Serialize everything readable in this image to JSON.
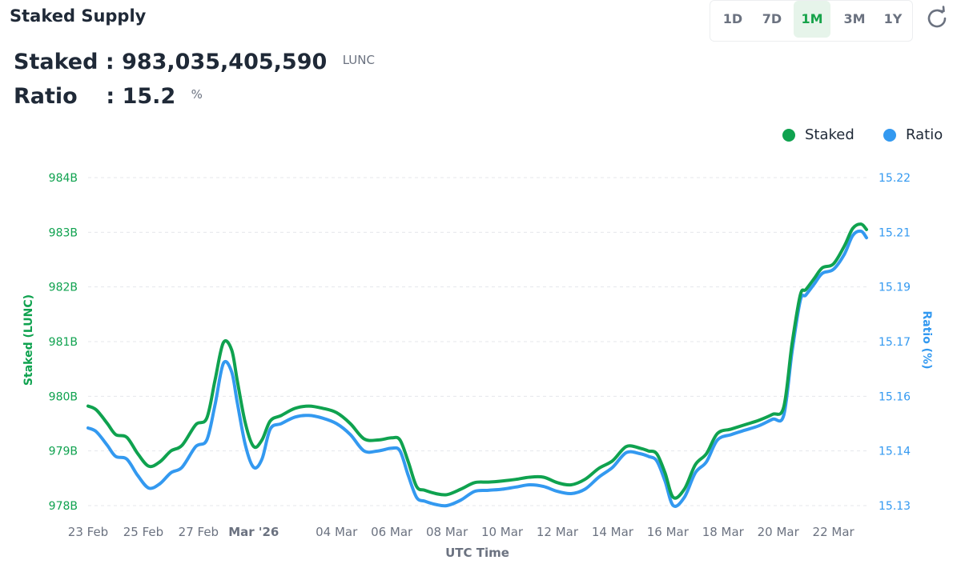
{
  "header": {
    "title": "Staked Supply",
    "ranges": [
      "1D",
      "7D",
      "1M",
      "3M",
      "1Y"
    ],
    "active_range": "1M",
    "refresh_icon": "refresh-icon"
  },
  "stats": {
    "staked_label": "Staked",
    "staked_value": "983,035,405,590",
    "staked_unit": "LUNC",
    "ratio_label": "Ratio",
    "ratio_value": "15.2",
    "ratio_unit": "%"
  },
  "colors": {
    "staked": "#0fa24f",
    "ratio": "#3399f0",
    "grid": "#e5e7eb"
  },
  "chart_data": {
    "type": "line",
    "title": "",
    "xlabel": "UTC Time",
    "ylabel": "Staked (LUNC)",
    "ylabel_right": "Ratio (%)",
    "x_tick_labels": [
      "23 Feb",
      "25 Feb",
      "27 Feb",
      "Mar '26",
      "04 Mar",
      "06 Mar",
      "08 Mar",
      "10 Mar",
      "12 Mar",
      "14 Mar",
      "16 Mar",
      "18 Mar",
      "20 Mar",
      "22 Mar"
    ],
    "x_tick_days": [
      0,
      2,
      4,
      6,
      9,
      11,
      13,
      15,
      17,
      19,
      21,
      23,
      25,
      27
    ],
    "x_range_days": [
      0,
      28.2
    ],
    "y_left_ticks": [
      984,
      983,
      982,
      981,
      980,
      979,
      978
    ],
    "y_left_tick_labels": [
      "984B",
      "983B",
      "982B",
      "981B",
      "980B",
      "979B",
      "978B"
    ],
    "y_left_range": [
      978,
      984
    ],
    "y_right_ticks": [
      15.22,
      15.21,
      15.19,
      15.17,
      15.16,
      15.14,
      15.13
    ],
    "y_right_tick_labels": [
      "15.22",
      "15.21",
      "15.19",
      "15.17",
      "15.16",
      "15.14",
      "15.13"
    ],
    "grid": true,
    "legend_position": "top-right",
    "x": [
      0,
      0.3,
      0.7,
      1,
      1.4,
      1.8,
      2.2,
      2.6,
      3,
      3.4,
      3.9,
      4.3,
      4.6,
      4.9,
      5.2,
      5.4,
      5.7,
      6,
      6.3,
      6.6,
      7,
      7.5,
      8,
      8.5,
      9,
      9.5,
      10,
      10.5,
      11,
      11.3,
      11.6,
      11.9,
      12.2,
      12.6,
      13,
      13.5,
      14,
      14.5,
      15,
      15.5,
      16,
      16.5,
      17,
      17.5,
      18,
      18.5,
      19,
      19.5,
      20,
      20.3,
      20.6,
      20.9,
      21.2,
      21.6,
      22,
      22.4,
      22.8,
      23.3,
      23.8,
      24.3,
      24.8,
      25.2,
      25.5,
      25.8,
      26,
      26.3,
      26.6,
      27,
      27.4,
      27.7,
      28,
      28.2
    ],
    "series": [
      {
        "name": "Staked",
        "axis": "left",
        "color": "#0fa24f",
        "values": [
          979.82,
          979.75,
          979.5,
          979.3,
          979.25,
          978.95,
          978.72,
          978.8,
          979.0,
          979.1,
          979.48,
          979.6,
          980.3,
          980.98,
          980.85,
          980.3,
          979.5,
          979.08,
          979.2,
          979.55,
          979.65,
          979.78,
          979.82,
          979.78,
          979.7,
          979.5,
          979.22,
          979.2,
          979.24,
          979.2,
          978.8,
          978.35,
          978.28,
          978.22,
          978.2,
          978.3,
          978.42,
          978.43,
          978.45,
          978.48,
          978.52,
          978.52,
          978.42,
          978.38,
          978.48,
          978.68,
          978.82,
          979.08,
          979.05,
          979.0,
          978.95,
          978.6,
          978.15,
          978.3,
          978.75,
          978.95,
          979.32,
          979.4,
          979.48,
          979.56,
          979.67,
          979.8,
          980.95,
          981.85,
          981.95,
          982.15,
          982.35,
          982.42,
          982.75,
          983.07,
          983.15,
          983.05
        ]
      },
      {
        "name": "Ratio",
        "axis": "right",
        "color": "#3399f0",
        "values": [
          979.42,
          979.35,
          979.1,
          978.9,
          978.85,
          978.55,
          978.32,
          978.4,
          978.6,
          978.7,
          979.08,
          979.2,
          979.85,
          980.6,
          980.45,
          979.9,
          979.1,
          978.7,
          978.85,
          979.4,
          979.5,
          979.62,
          979.65,
          979.6,
          979.5,
          979.3,
          979.0,
          979.0,
          979.05,
          979.0,
          978.55,
          978.15,
          978.08,
          978.02,
          978.0,
          978.1,
          978.26,
          978.28,
          978.3,
          978.34,
          978.38,
          978.35,
          978.26,
          978.22,
          978.3,
          978.52,
          978.7,
          978.97,
          978.95,
          978.9,
          978.82,
          978.45,
          978.0,
          978.15,
          978.6,
          978.8,
          979.2,
          979.3,
          979.38,
          979.46,
          979.58,
          979.65,
          980.8,
          981.75,
          981.85,
          982.05,
          982.25,
          982.32,
          982.6,
          982.94,
          983.02,
          982.9
        ]
      }
    ]
  }
}
